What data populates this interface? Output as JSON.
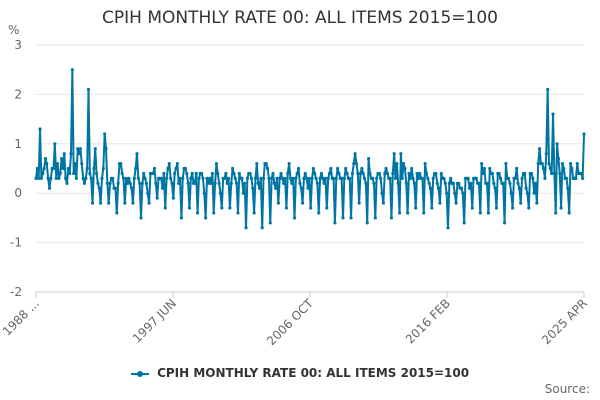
{
  "chart_data": {
    "type": "line",
    "title": "CPIH MONTHLY RATE 00: ALL ITEMS 2015=100",
    "ylabel": "%",
    "xlabel": "",
    "ylim": [
      -2,
      3
    ],
    "yticks": [
      -2,
      -1,
      0,
      1,
      2,
      3
    ],
    "x_tick_labels": [
      "1988 ...",
      "1997 JUN",
      "2006 OCT",
      "2016 FEB",
      "2025 APR"
    ],
    "grid": true,
    "legend_position": "bottom",
    "source": "Source:",
    "series": [
      {
        "name": "CPIH MONTHLY RATE 00: ALL ITEMS 2015=100",
        "color": "#0075a3",
        "values": [
          0.3,
          0.5,
          0.3,
          1.3,
          0.3,
          0.4,
          0.5,
          0.7,
          0.6,
          0.3,
          0.1,
          0.3,
          0.5,
          0.5,
          1.0,
          0.3,
          0.6,
          0.3,
          0.4,
          0.7,
          0.5,
          0.8,
          0.3,
          0.2,
          0.5,
          0.4,
          0.8,
          2.5,
          0.4,
          0.6,
          0.3,
          0.9,
          0.8,
          0.9,
          0.6,
          0.3,
          0.2,
          0.3,
          0.5,
          2.1,
          0.4,
          0.3,
          -0.2,
          0.5,
          0.9,
          0.4,
          0.2,
          0.1,
          -0.2,
          0.3,
          0.5,
          1.2,
          0.9,
          0.2,
          -0.2,
          0.2,
          0.3,
          0.3,
          0.1,
          0.1,
          -0.4,
          0.2,
          0.6,
          0.6,
          0.4,
          0.3,
          -0.2,
          0.3,
          0.2,
          0.3,
          0.2,
          0.1,
          -0.2,
          0.3,
          0.5,
          0.8,
          0.3,
          0.2,
          -0.5,
          0.2,
          0.4,
          0.3,
          0.2,
          0.0,
          -0.2,
          0.4,
          0.4,
          0.4,
          0.5,
          0.2,
          -0.1,
          0.3,
          0.3,
          0.3,
          0.1,
          0.4,
          -0.3,
          0.3,
          0.5,
          0.6,
          0.3,
          0.2,
          -0.1,
          0.4,
          0.5,
          0.6,
          0.2,
          0.3,
          -0.5,
          0.3,
          0.5,
          0.5,
          0.4,
          0.2,
          -0.3,
          0.3,
          0.4,
          0.2,
          0.2,
          0.4,
          -0.4,
          0.3,
          0.4,
          0.4,
          0.3,
          0.0,
          -0.5,
          0.3,
          0.2,
          0.3,
          0.2,
          0.4,
          -0.4,
          0.2,
          0.6,
          0.4,
          0.2,
          0.0,
          -0.3,
          0.3,
          0.3,
          0.4,
          0.2,
          0.3,
          -0.3,
          0.2,
          0.5,
          0.4,
          0.3,
          0.2,
          -0.4,
          0.4,
          0.3,
          0.3,
          0.0,
          0.2,
          -0.7,
          0.3,
          0.4,
          0.4,
          0.3,
          0.1,
          -0.4,
          0.3,
          0.6,
          0.2,
          0.1,
          0.3,
          -0.7,
          0.3,
          0.6,
          0.6,
          0.5,
          0.3,
          -0.6,
          0.3,
          0.4,
          0.2,
          0.1,
          0.3,
          -0.2,
          0.3,
          0.4,
          0.3,
          0.2,
          0.3,
          -0.3,
          0.4,
          0.6,
          0.3,
          0.2,
          0.3,
          -0.5,
          0.3,
          0.4,
          0.5,
          0.2,
          0.1,
          -0.2,
          0.3,
          0.4,
          0.3,
          0.1,
          0.3,
          -0.3,
          0.3,
          0.5,
          0.4,
          0.3,
          0.2,
          -0.4,
          0.3,
          0.4,
          0.3,
          0.2,
          0.3,
          -0.3,
          0.3,
          0.4,
          0.5,
          0.3,
          0.3,
          -0.6,
          0.3,
          0.5,
          0.4,
          0.3,
          0.3,
          -0.5,
          0.3,
          0.5,
          0.4,
          0.3,
          0.3,
          -0.5,
          0.4,
          0.6,
          0.8,
          0.6,
          0.4,
          -0.2,
          0.4,
          0.5,
          0.4,
          0.3,
          0.2,
          -0.6,
          0.7,
          0.4,
          0.3,
          0.3,
          0.2,
          -0.5,
          0.3,
          0.4,
          0.4,
          0.3,
          0.0,
          -0.2,
          0.4,
          0.5,
          0.4,
          0.3,
          0.3,
          -0.5,
          0.4,
          0.8,
          0.3,
          0.6,
          0.2,
          -0.4,
          0.8,
          0.3,
          0.6,
          0.5,
          0.2,
          -0.4,
          0.4,
          0.3,
          0.5,
          0.3,
          0.2,
          -0.3,
          0.4,
          0.3,
          0.4,
          0.3,
          0.3,
          -0.4,
          0.6,
          0.4,
          0.3,
          0.2,
          0.1,
          -0.3,
          0.3,
          0.4,
          0.4,
          0.2,
          0.1,
          -0.2,
          0.4,
          0.3,
          0.3,
          0.2,
          0.0,
          -0.7,
          0.2,
          0.3,
          0.2,
          0.2,
          0.0,
          -0.2,
          0.2,
          0.2,
          0.1,
          0.1,
          0.0,
          -0.6,
          0.3,
          0.3,
          0.3,
          0.1,
          0.2,
          -0.3,
          0.3,
          0.3,
          0.3,
          0.2,
          0.2,
          -0.4,
          0.6,
          0.4,
          0.5,
          0.2,
          0.2,
          -0.4,
          0.5,
          0.4,
          0.4,
          0.2,
          0.1,
          -0.3,
          0.4,
          0.4,
          0.3,
          0.2,
          0.2,
          -0.6,
          0.6,
          0.3,
          0.3,
          0.2,
          0.0,
          -0.3,
          0.3,
          0.3,
          0.5,
          0.2,
          0.1,
          -0.2,
          0.3,
          0.4,
          0.4,
          0.1,
          0.0,
          -0.3,
          0.4,
          0.4,
          0.3,
          0.0,
          0.2,
          -0.2,
          0.6,
          0.9,
          0.6,
          0.6,
          0.5,
          0.3,
          0.8,
          2.1,
          0.6,
          0.5,
          0.4,
          1.6,
          0.4,
          -0.4,
          1.0,
          0.7,
          0.4,
          -0.3,
          0.6,
          0.5,
          0.3,
          0.3,
          0.1,
          -0.4,
          0.6,
          0.5,
          0.3,
          0.3,
          0.3,
          0.6,
          0.4,
          0.4,
          0.4,
          0.3,
          1.2
        ]
      }
    ]
  }
}
